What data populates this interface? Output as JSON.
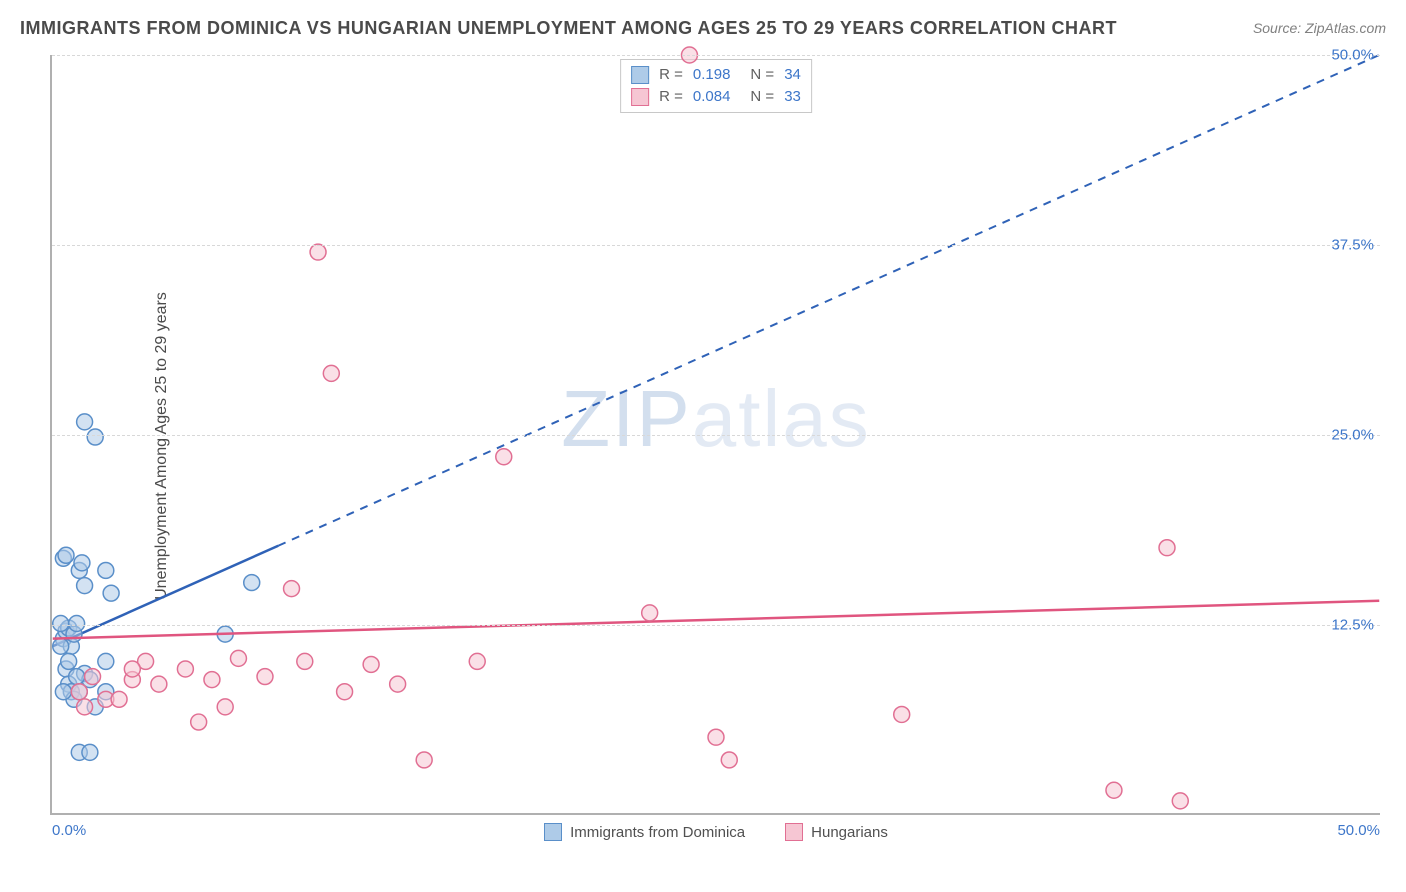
{
  "title": "IMMIGRANTS FROM DOMINICA VS HUNGARIAN UNEMPLOYMENT AMONG AGES 25 TO 29 YEARS CORRELATION CHART",
  "source_prefix": "Source: ",
  "source_name": "ZipAtlas.com",
  "ylabel": "Unemployment Among Ages 25 to 29 years",
  "watermark_a": "ZIP",
  "watermark_b": "atlas",
  "chart": {
    "type": "scatter",
    "xlim": [
      0,
      50
    ],
    "ylim": [
      0,
      50
    ],
    "xticks": [
      {
        "v": 0,
        "l": "0.0%"
      },
      {
        "v": 50,
        "l": "50.0%"
      }
    ],
    "yticks": [
      {
        "v": 12.5,
        "l": "12.5%"
      },
      {
        "v": 25,
        "l": "25.0%"
      },
      {
        "v": 37.5,
        "l": "37.5%"
      },
      {
        "v": 50,
        "l": "50.0%"
      }
    ],
    "grid_color": "#d8d8d8",
    "background_color": "#ffffff",
    "marker_radius": 8,
    "marker_stroke_width": 1.5,
    "line_width": 2.5,
    "series": [
      {
        "name": "Immigrants from Dominica",
        "fill": "#aecbe8",
        "stroke": "#5a8fc9",
        "line_color": "#2f62b7",
        "r_label": "R",
        "r_value": "0.198",
        "n_label": "N",
        "n_value": "34",
        "trend": {
          "x1": 0,
          "y1": 11.0,
          "x2": 50,
          "y2": 50.0,
          "solid_until_x": 8.5
        },
        "points": [
          [
            0.4,
            11.5
          ],
          [
            0.5,
            12.0
          ],
          [
            0.6,
            12.2
          ],
          [
            0.7,
            11.0
          ],
          [
            0.8,
            11.8
          ],
          [
            0.9,
            12.5
          ],
          [
            1.0,
            16.0
          ],
          [
            1.1,
            16.5
          ],
          [
            1.2,
            15.0
          ],
          [
            0.5,
            9.5
          ],
          [
            0.6,
            8.5
          ],
          [
            0.7,
            8.0
          ],
          [
            0.8,
            7.5
          ],
          [
            1.0,
            8.0
          ],
          [
            1.2,
            9.2
          ],
          [
            1.4,
            8.8
          ],
          [
            1.6,
            7.0
          ],
          [
            2.0,
            10.0
          ],
          [
            1.0,
            4.0
          ],
          [
            1.4,
            4.0
          ],
          [
            1.2,
            25.8
          ],
          [
            1.6,
            24.8
          ],
          [
            2.0,
            16.0
          ],
          [
            2.2,
            14.5
          ],
          [
            2.0,
            8.0
          ],
          [
            0.4,
            16.8
          ],
          [
            0.5,
            17.0
          ],
          [
            0.3,
            12.5
          ],
          [
            0.4,
            8.0
          ],
          [
            7.5,
            15.2
          ],
          [
            6.5,
            11.8
          ],
          [
            0.3,
            11.0
          ],
          [
            0.6,
            10.0
          ],
          [
            0.9,
            9.0
          ]
        ]
      },
      {
        "name": "Hungarians",
        "fill": "#f6c6d3",
        "stroke": "#e16f93",
        "line_color": "#e0557f",
        "r_label": "R",
        "r_value": "0.084",
        "n_label": "N",
        "n_value": "33",
        "trend": {
          "x1": 0,
          "y1": 11.5,
          "x2": 50,
          "y2": 14.0,
          "solid_until_x": 50
        },
        "points": [
          [
            1.0,
            8.0
          ],
          [
            1.5,
            9.0
          ],
          [
            2.0,
            7.5
          ],
          [
            3.0,
            8.8
          ],
          [
            3.5,
            10.0
          ],
          [
            4.0,
            8.5
          ],
          [
            5.0,
            9.5
          ],
          [
            5.5,
            6.0
          ],
          [
            6.0,
            8.8
          ],
          [
            7.0,
            10.2
          ],
          [
            8.0,
            9.0
          ],
          [
            9.0,
            14.8
          ],
          [
            9.5,
            10.0
          ],
          [
            10.0,
            37.0
          ],
          [
            10.5,
            29.0
          ],
          [
            11.0,
            8.0
          ],
          [
            12.0,
            9.8
          ],
          [
            14.0,
            3.5
          ],
          [
            16.0,
            10.0
          ],
          [
            17.0,
            23.5
          ],
          [
            22.5,
            13.2
          ],
          [
            24.0,
            50.0
          ],
          [
            25.0,
            5.0
          ],
          [
            25.5,
            3.5
          ],
          [
            32.0,
            6.5
          ],
          [
            40.0,
            1.5
          ],
          [
            42.0,
            17.5
          ],
          [
            42.5,
            0.8
          ],
          [
            1.2,
            7.0
          ],
          [
            2.5,
            7.5
          ],
          [
            3.0,
            9.5
          ],
          [
            6.5,
            7.0
          ],
          [
            13.0,
            8.5
          ]
        ]
      }
    ]
  }
}
